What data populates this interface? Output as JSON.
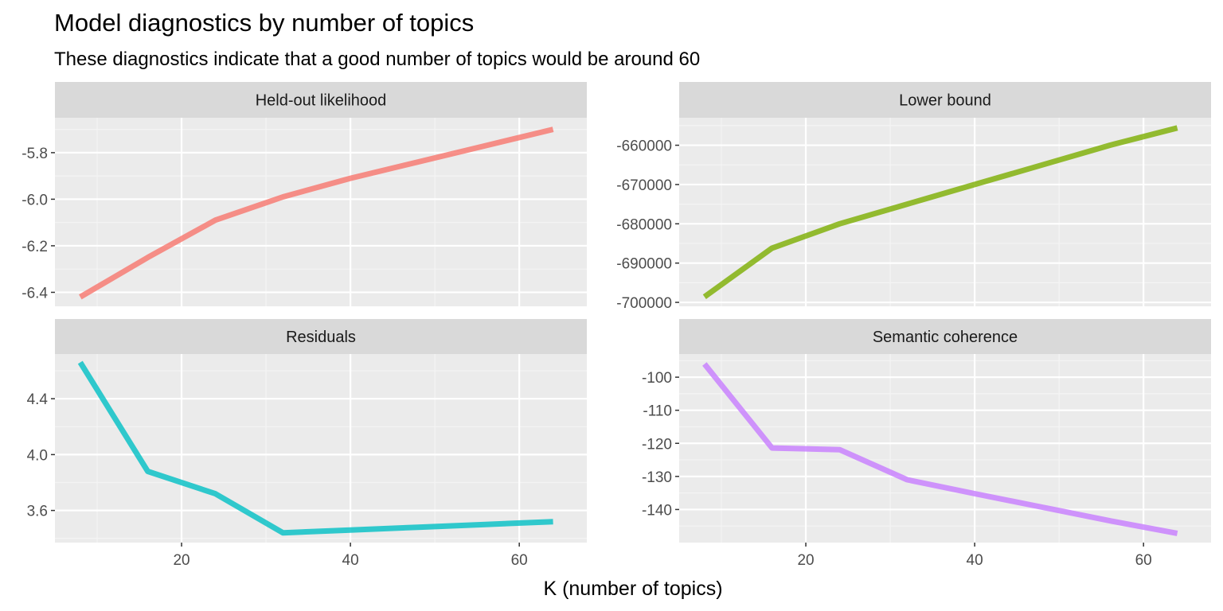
{
  "chart_data": {
    "type": "line",
    "title": "Model diagnostics by number of topics",
    "subtitle": "These diagnostics indicate that a good number of topics would be around 60",
    "xlabel": "K (number of topics)",
    "ylabel": "",
    "x": [
      8,
      16,
      24,
      32,
      40,
      48,
      56,
      64
    ],
    "x_ticks": [
      20,
      40,
      60
    ],
    "xlim": [
      5,
      68
    ],
    "grid": true,
    "legend": "none",
    "panels": [
      {
        "name": "Held-out likelihood",
        "color": "#F8766D",
        "values": [
          -6.42,
          -6.25,
          -6.09,
          -5.99,
          -5.91,
          -5.84,
          -5.77,
          -5.7
        ],
        "ylim": [
          -6.46,
          -5.65
        ],
        "y_ticks": [
          -6.4,
          -6.2,
          -6.0,
          -5.8
        ],
        "tick_labels": [
          "-6.4",
          "-6.2",
          "-6.0",
          "-5.8"
        ]
      },
      {
        "name": "Lower bound",
        "color": "#7CAE00",
        "values": [
          -698600,
          -686200,
          -680000,
          -675000,
          -670000,
          -665000,
          -660000,
          -655600
        ],
        "ylim": [
          -701000,
          -653000
        ],
        "y_ticks": [
          -700000,
          -690000,
          -680000,
          -670000,
          -660000
        ],
        "tick_labels": [
          "-700000",
          "-690000",
          "-680000",
          "-670000",
          "-660000"
        ]
      },
      {
        "name": "Residuals",
        "color": "#00BFC4",
        "values": [
          4.66,
          3.88,
          3.72,
          3.44,
          3.46,
          3.48,
          3.5,
          3.52
        ],
        "ylim": [
          3.37,
          4.72
        ],
        "y_ticks": [
          3.6,
          4.0,
          4.4
        ],
        "tick_labels": [
          "3.6",
          "4.0",
          "4.4"
        ]
      },
      {
        "name": "Semantic coherence",
        "color": "#C77CFF",
        "values": [
          -96,
          -121.4,
          -121.9,
          -131,
          -135.2,
          -139.3,
          -143.4,
          -147.2
        ],
        "ylim": [
          -150,
          -93
        ],
        "y_ticks": [
          -140,
          -130,
          -120,
          -110,
          -100
        ],
        "tick_labels": [
          "-140",
          "-130",
          "-120",
          "-110",
          "-100"
        ]
      }
    ]
  }
}
